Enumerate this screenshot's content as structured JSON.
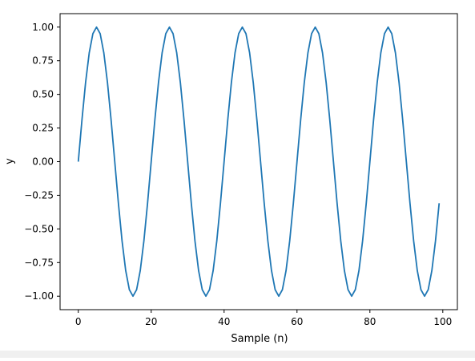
{
  "chart_data": {
    "type": "line",
    "title": "",
    "xlabel": "Sample (n)",
    "ylabel": "y",
    "xlim": [
      -5,
      104
    ],
    "ylim": [
      -1.1,
      1.1
    ],
    "x_ticks": [
      0,
      20,
      40,
      60,
      80,
      100
    ],
    "y_ticks": [
      -1.0,
      -0.75,
      -0.5,
      -0.25,
      0.0,
      0.25,
      0.5,
      0.75,
      1.0
    ],
    "x_tick_labels": [
      "0",
      "20",
      "40",
      "60",
      "80",
      "100"
    ],
    "y_tick_labels": [
      "−1.00",
      "−0.75",
      "−0.50",
      "−0.25",
      "0.00",
      "0.25",
      "0.50",
      "0.75",
      "1.00"
    ],
    "grid": false,
    "line_color": "#1f77b4",
    "series": [
      {
        "x": [
          0,
          1,
          2,
          3,
          4,
          5,
          6,
          7,
          8,
          9,
          10,
          11,
          12,
          13,
          14,
          15,
          16,
          17,
          18,
          19,
          20,
          21,
          22,
          23,
          24,
          25,
          26,
          27,
          28,
          29,
          30,
          31,
          32,
          33,
          34,
          35,
          36,
          37,
          38,
          39,
          40,
          41,
          42,
          43,
          44,
          45,
          46,
          47,
          48,
          49,
          50,
          51,
          52,
          53,
          54,
          55,
          56,
          57,
          58,
          59,
          60,
          61,
          62,
          63,
          64,
          65,
          66,
          67,
          68,
          69,
          70,
          71,
          72,
          73,
          74,
          75,
          76,
          77,
          78,
          79,
          80,
          81,
          82,
          83,
          84,
          85,
          86,
          87,
          88,
          89,
          90,
          91,
          92,
          93,
          94,
          95,
          96,
          97,
          98,
          99
        ],
        "values": [
          0.0,
          0.309,
          0.588,
          0.809,
          0.951,
          1.0,
          0.951,
          0.809,
          0.588,
          0.309,
          0.0,
          -0.309,
          -0.588,
          -0.809,
          -0.951,
          -1.0,
          -0.951,
          -0.809,
          -0.588,
          -0.309,
          0.0,
          0.309,
          0.588,
          0.809,
          0.951,
          1.0,
          0.951,
          0.809,
          0.588,
          0.309,
          0.0,
          -0.309,
          -0.588,
          -0.809,
          -0.951,
          -1.0,
          -0.951,
          -0.809,
          -0.588,
          -0.309,
          0.0,
          0.309,
          0.588,
          0.809,
          0.951,
          1.0,
          0.951,
          0.809,
          0.588,
          0.309,
          0.0,
          -0.309,
          -0.588,
          -0.809,
          -0.951,
          -1.0,
          -0.951,
          -0.809,
          -0.588,
          -0.309,
          0.0,
          0.309,
          0.588,
          0.809,
          0.951,
          1.0,
          0.951,
          0.809,
          0.588,
          0.309,
          0.0,
          -0.309,
          -0.588,
          -0.809,
          -0.951,
          -1.0,
          -0.951,
          -0.809,
          -0.588,
          -0.309,
          0.0,
          0.309,
          0.588,
          0.809,
          0.951,
          1.0,
          0.951,
          0.809,
          0.588,
          0.309,
          0.0,
          -0.309,
          -0.588,
          -0.809,
          -0.951,
          -1.0,
          -0.951,
          -0.809,
          -0.588,
          -0.309
        ]
      }
    ]
  }
}
